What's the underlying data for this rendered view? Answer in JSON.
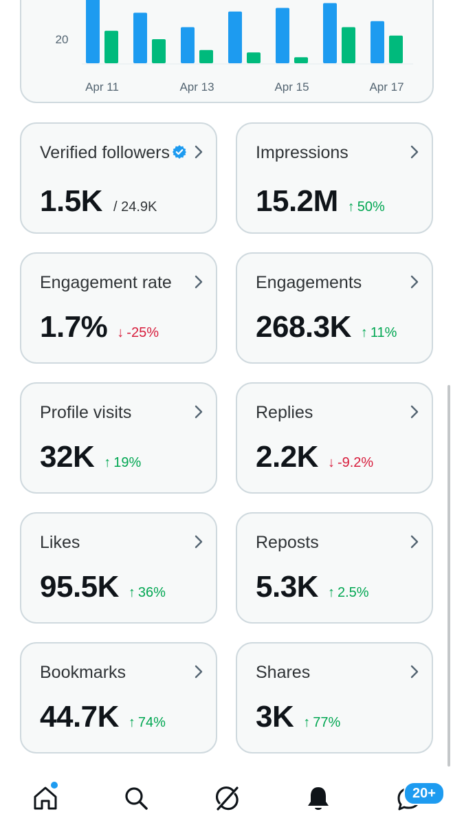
{
  "chart_data": {
    "type": "bar",
    "categories": [
      "Apr 11",
      "Apr 12",
      "Apr 13",
      "Apr 14",
      "Apr 15",
      "Apr 16",
      "Apr 17"
    ],
    "tick_labels": [
      "Apr 11",
      "Apr 13",
      "Apr 15",
      "Apr 17"
    ],
    "y_tick_labels": [
      "20"
    ],
    "y_ticks": [
      20
    ],
    "ylim": [
      0,
      60
    ],
    "colors": [
      "#1d9bf0",
      "#00ba7c"
    ],
    "series": [
      {
        "values": [
          58,
          42,
          30,
          43,
          46,
          50,
          35
        ]
      },
      {
        "values": [
          27,
          20,
          11,
          9,
          5,
          30,
          23
        ]
      }
    ]
  },
  "metrics": [
    {
      "label": "Verified followers",
      "value": "1.5K",
      "total": "/ 24.9K",
      "verified": true
    },
    {
      "label": "Impressions",
      "value": "15.2M",
      "direction": "up",
      "arrow": "↑",
      "change": "50%"
    },
    {
      "label": "Engagement rate",
      "value": "1.7%",
      "direction": "down",
      "arrow": "↓",
      "change": "-25%"
    },
    {
      "label": "Engagements",
      "value": "268.3K",
      "direction": "up",
      "arrow": "↑",
      "change": "11%"
    },
    {
      "label": "Profile visits",
      "value": "32K",
      "direction": "up",
      "arrow": "↑",
      "change": "19%"
    },
    {
      "label": "Replies",
      "value": "2.2K",
      "direction": "down",
      "arrow": "↓",
      "change": "-9.2%"
    },
    {
      "label": "Likes",
      "value": "95.5K",
      "direction": "up",
      "arrow": "↑",
      "change": "36%"
    },
    {
      "label": "Reposts",
      "value": "5.3K",
      "direction": "up",
      "arrow": "↑",
      "change": "2.5%"
    },
    {
      "label": "Bookmarks",
      "value": "44.7K",
      "direction": "up",
      "arrow": "↑",
      "change": "74%"
    },
    {
      "label": "Shares",
      "value": "3K",
      "direction": "up",
      "arrow": "↑",
      "change": "77%"
    }
  ],
  "nav": {
    "items": [
      "home-icon",
      "search-icon",
      "grok-icon",
      "notifications-icon",
      "messages-icon"
    ],
    "messages_badge": "20+",
    "accent": "#1d9bf0"
  }
}
